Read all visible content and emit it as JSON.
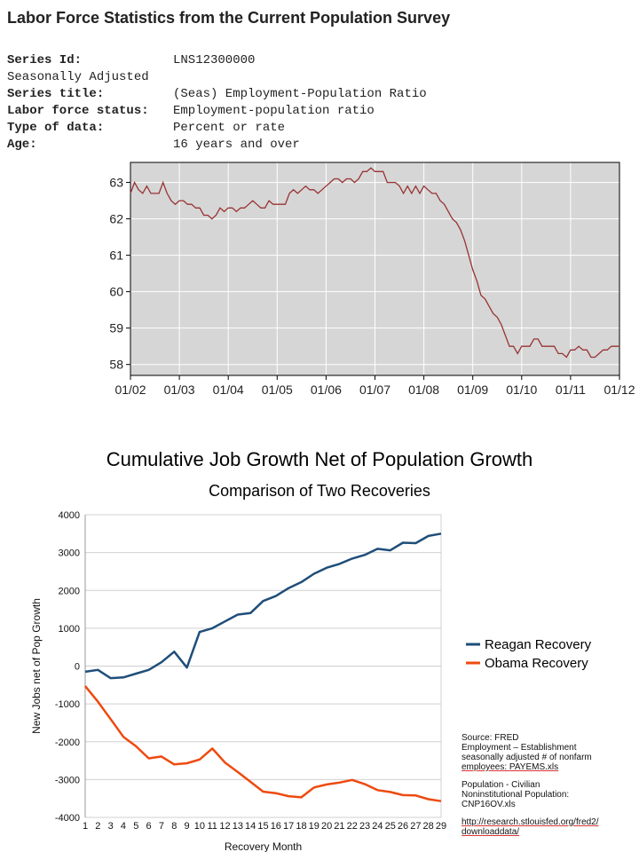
{
  "header": {
    "title": "Labor Force Statistics from the Current Population Survey"
  },
  "series_info": [
    {
      "label": "Series Id:",
      "value": "LNS12300000",
      "bold": true
    },
    {
      "label": "Seasonally Adjusted",
      "value": "",
      "bold": false
    },
    {
      "label": "Series title:",
      "value": "(Seas) Employment-Population Ratio",
      "bold": true
    },
    {
      "label": "Labor force status:",
      "value": "Employment-population ratio",
      "bold": true
    },
    {
      "label": "Type of data:",
      "value": "Percent or rate",
      "bold": true
    },
    {
      "label": "Age:",
      "value": "16 years and over",
      "bold": true
    }
  ],
  "notes": {
    "source": "Source: FRED",
    "employment_line1": "Employment – Establishment",
    "employment_line2": "seasonally adjusted # of nonfarm",
    "employment_line3": "employees: PAYEMS.xls",
    "population_line1": "Population - Civilian",
    "population_line2": "Noninstitutional Population:",
    "population_line3": "CNP16OV.xls",
    "url_line1": "http://research.stlouisfed.org/fred2/",
    "url_line2": "downloaddata/"
  },
  "colors": {
    "ratio_line": "#993333",
    "reagan": "#1f4e79",
    "obama": "#ee4a0f",
    "plot_bg": "#d6d6d6"
  },
  "chart_data": [
    {
      "type": "line",
      "title": "",
      "xlabel": "",
      "ylabel": "",
      "x_ticks": [
        "01/02",
        "01/03",
        "01/04",
        "01/05",
        "01/06",
        "01/07",
        "01/08",
        "01/09",
        "01/10",
        "01/11",
        "01/12"
      ],
      "y_ticks": [
        58,
        59,
        60,
        61,
        62,
        63
      ],
      "xlim": [
        "01/02",
        "01/12"
      ],
      "ylim": [
        57.7,
        63.55
      ],
      "grid": true,
      "series": [
        {
          "points": [
            [
              "01/02",
              62.7
            ],
            [
              "02/02",
              63.0
            ],
            [
              "03/02",
              62.8
            ],
            [
              "04/02",
              62.7
            ],
            [
              "05/02",
              62.9
            ],
            [
              "06/02",
              62.7
            ],
            [
              "07/02",
              62.7
            ],
            [
              "08/02",
              62.7
            ],
            [
              "09/02",
              63.0
            ],
            [
              "10/02",
              62.7
            ],
            [
              "11/02",
              62.5
            ],
            [
              "12/02",
              62.4
            ],
            [
              "01/03",
              62.5
            ],
            [
              "02/03",
              62.5
            ],
            [
              "03/03",
              62.4
            ],
            [
              "04/03",
              62.4
            ],
            [
              "05/03",
              62.3
            ],
            [
              "06/03",
              62.3
            ],
            [
              "07/03",
              62.1
            ],
            [
              "08/03",
              62.1
            ],
            [
              "09/03",
              62.0
            ],
            [
              "10/03",
              62.1
            ],
            [
              "11/03",
              62.3
            ],
            [
              "12/03",
              62.2
            ],
            [
              "01/04",
              62.3
            ],
            [
              "02/04",
              62.3
            ],
            [
              "03/04",
              62.2
            ],
            [
              "04/04",
              62.3
            ],
            [
              "05/04",
              62.3
            ],
            [
              "06/04",
              62.4
            ],
            [
              "07/04",
              62.5
            ],
            [
              "08/04",
              62.4
            ],
            [
              "09/04",
              62.3
            ],
            [
              "10/04",
              62.3
            ],
            [
              "11/04",
              62.5
            ],
            [
              "12/04",
              62.4
            ],
            [
              "01/05",
              62.4
            ],
            [
              "02/05",
              62.4
            ],
            [
              "03/05",
              62.4
            ],
            [
              "04/05",
              62.7
            ],
            [
              "05/05",
              62.8
            ],
            [
              "06/05",
              62.7
            ],
            [
              "07/05",
              62.8
            ],
            [
              "08/05",
              62.9
            ],
            [
              "09/05",
              62.8
            ],
            [
              "10/05",
              62.8
            ],
            [
              "11/05",
              62.7
            ],
            [
              "12/05",
              62.8
            ],
            [
              "01/06",
              62.9
            ],
            [
              "02/06",
              63.0
            ],
            [
              "03/06",
              63.1
            ],
            [
              "04/06",
              63.1
            ],
            [
              "05/06",
              63.0
            ],
            [
              "06/06",
              63.1
            ],
            [
              "07/06",
              63.1
            ],
            [
              "08/06",
              63.0
            ],
            [
              "09/06",
              63.1
            ],
            [
              "10/06",
              63.3
            ],
            [
              "11/06",
              63.3
            ],
            [
              "12/06",
              63.4
            ],
            [
              "01/07",
              63.3
            ],
            [
              "02/07",
              63.3
            ],
            [
              "03/07",
              63.3
            ],
            [
              "04/07",
              63.0
            ],
            [
              "05/07",
              63.0
            ],
            [
              "06/07",
              63.0
            ],
            [
              "07/07",
              62.9
            ],
            [
              "08/07",
              62.7
            ],
            [
              "09/07",
              62.9
            ],
            [
              "10/07",
              62.7
            ],
            [
              "11/07",
              62.9
            ],
            [
              "12/07",
              62.7
            ],
            [
              "01/08",
              62.9
            ],
            [
              "02/08",
              62.8
            ],
            [
              "03/08",
              62.7
            ],
            [
              "04/08",
              62.7
            ],
            [
              "05/08",
              62.5
            ],
            [
              "06/08",
              62.4
            ],
            [
              "07/08",
              62.2
            ],
            [
              "08/08",
              62.0
            ],
            [
              "09/08",
              61.9
            ],
            [
              "10/08",
              61.7
            ],
            [
              "11/08",
              61.4
            ],
            [
              "12/08",
              61.0
            ],
            [
              "01/09",
              60.6
            ],
            [
              "02/09",
              60.3
            ],
            [
              "03/09",
              59.9
            ],
            [
              "04/09",
              59.8
            ],
            [
              "05/09",
              59.6
            ],
            [
              "06/09",
              59.4
            ],
            [
              "07/09",
              59.3
            ],
            [
              "08/09",
              59.1
            ],
            [
              "09/09",
              58.8
            ],
            [
              "10/09",
              58.5
            ],
            [
              "11/09",
              58.5
            ],
            [
              "12/09",
              58.3
            ],
            [
              "01/10",
              58.5
            ],
            [
              "02/10",
              58.5
            ],
            [
              "03/10",
              58.5
            ],
            [
              "04/10",
              58.7
            ],
            [
              "05/10",
              58.7
            ],
            [
              "06/10",
              58.5
            ],
            [
              "07/10",
              58.5
            ],
            [
              "08/10",
              58.5
            ],
            [
              "09/10",
              58.5
            ],
            [
              "10/10",
              58.3
            ],
            [
              "11/10",
              58.3
            ],
            [
              "12/10",
              58.2
            ],
            [
              "01/11",
              58.4
            ],
            [
              "02/11",
              58.4
            ],
            [
              "03/11",
              58.5
            ],
            [
              "04/11",
              58.4
            ],
            [
              "05/11",
              58.4
            ],
            [
              "06/11",
              58.2
            ],
            [
              "07/11",
              58.2
            ],
            [
              "08/11",
              58.3
            ],
            [
              "09/11",
              58.4
            ],
            [
              "10/11",
              58.4
            ],
            [
              "11/11",
              58.5
            ],
            [
              "12/11",
              58.5
            ],
            [
              "01/12",
              58.5
            ]
          ]
        }
      ]
    },
    {
      "type": "line",
      "title": "Cumulative Job Growth Net of Population Growth",
      "subtitle": "Comparison of Two Recoveries",
      "xlabel": "Recovery Month",
      "ylabel": "New Jobs net of Pop Growth",
      "x": [
        1,
        2,
        3,
        4,
        5,
        6,
        7,
        8,
        9,
        10,
        11,
        12,
        13,
        14,
        15,
        16,
        17,
        18,
        19,
        20,
        21,
        22,
        23,
        24,
        25,
        26,
        27,
        28,
        29
      ],
      "y_ticks": [
        -4000,
        -3000,
        -2000,
        -1000,
        0,
        1000,
        2000,
        3000,
        4000
      ],
      "ylim": [
        -4000,
        4000
      ],
      "grid": true,
      "legend": "right",
      "series": [
        {
          "name": "Reagan Recovery",
          "values": [
            -150,
            -100,
            -320,
            -300,
            -200,
            -100,
            100,
            380,
            -40,
            900,
            1000,
            1180,
            1360,
            1400,
            1720,
            1850,
            2060,
            2220,
            2440,
            2600,
            2700,
            2840,
            2940,
            3100,
            3060,
            3260,
            3250,
            3440,
            3500
          ]
        },
        {
          "name": "Obama Recovery",
          "values": [
            -530,
            -940,
            -1400,
            -1870,
            -2120,
            -2440,
            -2390,
            -2600,
            -2570,
            -2470,
            -2180,
            -2550,
            -2800,
            -3060,
            -3320,
            -3360,
            -3440,
            -3470,
            -3210,
            -3130,
            -3080,
            -3010,
            -3120,
            -3280,
            -3330,
            -3410,
            -3420,
            -3520,
            -3570
          ]
        }
      ]
    }
  ]
}
